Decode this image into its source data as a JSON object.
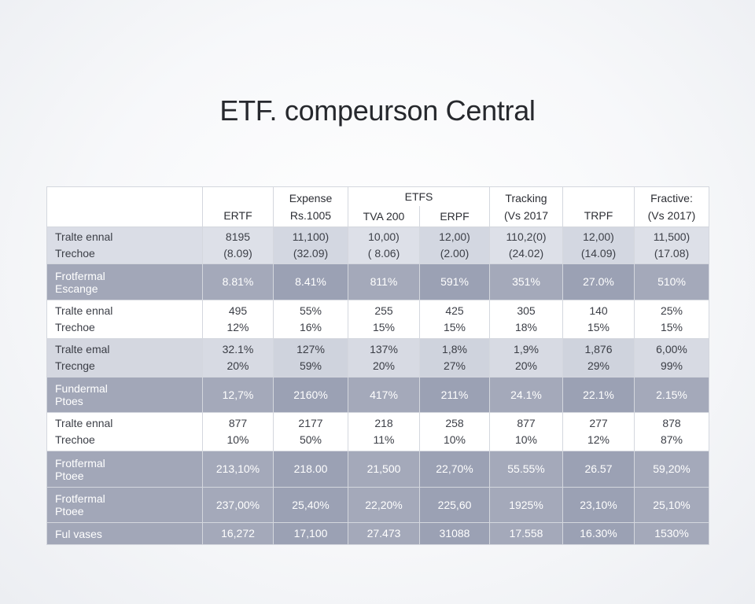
{
  "title": "ETF. compeurson Central",
  "header": {
    "col1": {
      "top": "",
      "bottom": "ERTF"
    },
    "col2": {
      "top": "Expense",
      "bottom": "Rs.1005"
    },
    "group": "ETFS",
    "col3": {
      "bottom": "TVA 200"
    },
    "col4": {
      "bottom": "ERPF"
    },
    "col5": {
      "top": "Tracking",
      "bottom": "(Vs 2017"
    },
    "col6": {
      "top": "",
      "bottom": "TRPF"
    },
    "col7": {
      "top": "Fractive:",
      "bottom": "(Vs 2017)"
    }
  },
  "rows": [
    {
      "label1": "Tralte ennal",
      "label2": "Trechoe",
      "cells": [
        [
          "8195",
          "(8.09)"
        ],
        [
          "11,100)",
          "(32.09)"
        ],
        [
          "10,00)",
          "( 8.06)"
        ],
        [
          "12,00)",
          "(2.00)"
        ],
        [
          "110,2(0)",
          "(24.02)"
        ],
        [
          "12,00)",
          "(14.09)"
        ],
        [
          "11,500)",
          "(17.08)"
        ]
      ]
    },
    {
      "label1": "Frotfermal",
      "label2": "Escange",
      "cells": [
        [
          "8.81%"
        ],
        [
          "8.41%"
        ],
        [
          "811%"
        ],
        [
          "591%"
        ],
        [
          "351%"
        ],
        [
          "27.0%"
        ],
        [
          "510%"
        ]
      ]
    },
    {
      "label1": "Tralte ennal",
      "label2": "Trechoe",
      "cells": [
        [
          "495",
          "12%"
        ],
        [
          "55%",
          "16%"
        ],
        [
          "255",
          "15%"
        ],
        [
          "425",
          "15%"
        ],
        [
          "305",
          "18%"
        ],
        [
          "140",
          "15%"
        ],
        [
          "25%",
          "15%"
        ]
      ]
    },
    {
      "label1": "Tralte emal",
      "label2": "Trecnge",
      "cells": [
        [
          "32.1%",
          "20%"
        ],
        [
          "127%",
          "59%"
        ],
        [
          "137%",
          "20%"
        ],
        [
          "1,8%",
          "27%"
        ],
        [
          "1,9%",
          "20%"
        ],
        [
          "1,876",
          "29%"
        ],
        [
          "6,00%",
          "99%"
        ]
      ]
    },
    {
      "label1": "Fundermal",
      "label2": "Ptoes",
      "cells": [
        [
          "12,7%"
        ],
        [
          "2160%"
        ],
        [
          "417%"
        ],
        [
          "211%"
        ],
        [
          "24.1%"
        ],
        [
          "22.1%"
        ],
        [
          "2.15%"
        ]
      ]
    },
    {
      "label1": "Tralte ennal",
      "label2": "Trechoe",
      "cells": [
        [
          "877",
          "10%"
        ],
        [
          "2177",
          "50%"
        ],
        [
          "218",
          "11%"
        ],
        [
          "258",
          "10%"
        ],
        [
          "877",
          "10%"
        ],
        [
          "277",
          "12%"
        ],
        [
          "878",
          "87%"
        ]
      ]
    },
    {
      "label1": "Frotfermal",
      "label2": "Ptoee",
      "cells": [
        [
          "213,10%"
        ],
        [
          "218.00"
        ],
        [
          "21,500"
        ],
        [
          "22,70%"
        ],
        [
          "55.55%"
        ],
        [
          "26.57"
        ],
        [
          "59,20%"
        ]
      ]
    },
    {
      "label1": "Frotfermal",
      "label2": "Ptoee",
      "cells": [
        [
          "237,00%"
        ],
        [
          "25,40%"
        ],
        [
          "22,20%"
        ],
        [
          "225,60"
        ],
        [
          "1925%"
        ],
        [
          "23,10%"
        ],
        [
          "25,10%"
        ]
      ]
    },
    {
      "label1": "Ful vases",
      "label2": "",
      "cells": [
        [
          "16,272"
        ],
        [
          "17,100"
        ],
        [
          "27.473"
        ],
        [
          "31088"
        ],
        [
          "17.558"
        ],
        [
          "16.30%"
        ],
        [
          "1530%"
        ]
      ]
    }
  ]
}
